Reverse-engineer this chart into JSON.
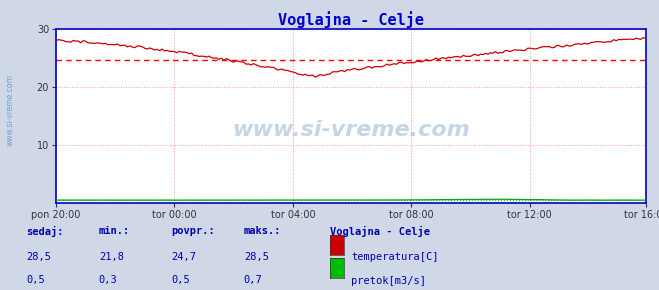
{
  "title": "Voglajna - Celje",
  "title_color": "#0000cc",
  "bg_color": "#d0d8e8",
  "plot_bg_color": "#ffffff",
  "border_color": "#0000cc",
  "watermark": "www.si-vreme.com",
  "x_tick_labels": [
    "pon 20:00",
    "tor 00:00",
    "tor 04:00",
    "tor 08:00",
    "tor 12:00",
    "tor 16:00"
  ],
  "x_tick_positions": [
    0,
    48,
    96,
    144,
    192,
    239
  ],
  "ylim": [
    0,
    30
  ],
  "yticks": [
    10,
    20,
    30
  ],
  "grid_color": "#ff9999",
  "avg_temp": 24.7,
  "avg_flow": 0.5,
  "temp_color": "#cc0000",
  "flow_color": "#00aa00",
  "avg_temp_line_color": "#ff0000",
  "avg_flow_line_color": "#00cc00",
  "legend_station": "Voglajna - Celje",
  "legend_items": [
    "temperatura[C]",
    "pretok[m3/s]"
  ],
  "legend_colors": [
    "#cc0000",
    "#00bb00"
  ],
  "stats_labels": [
    "sedaj:",
    "min.:",
    "povpr.:",
    "maks.:"
  ],
  "stats_temp": [
    "28,5",
    "21,8",
    "24,7",
    "28,5"
  ],
  "stats_flow": [
    "0,5",
    "0,3",
    "0,5",
    "0,7"
  ],
  "n_points": 240,
  "sidebar_color": "#6699cc"
}
